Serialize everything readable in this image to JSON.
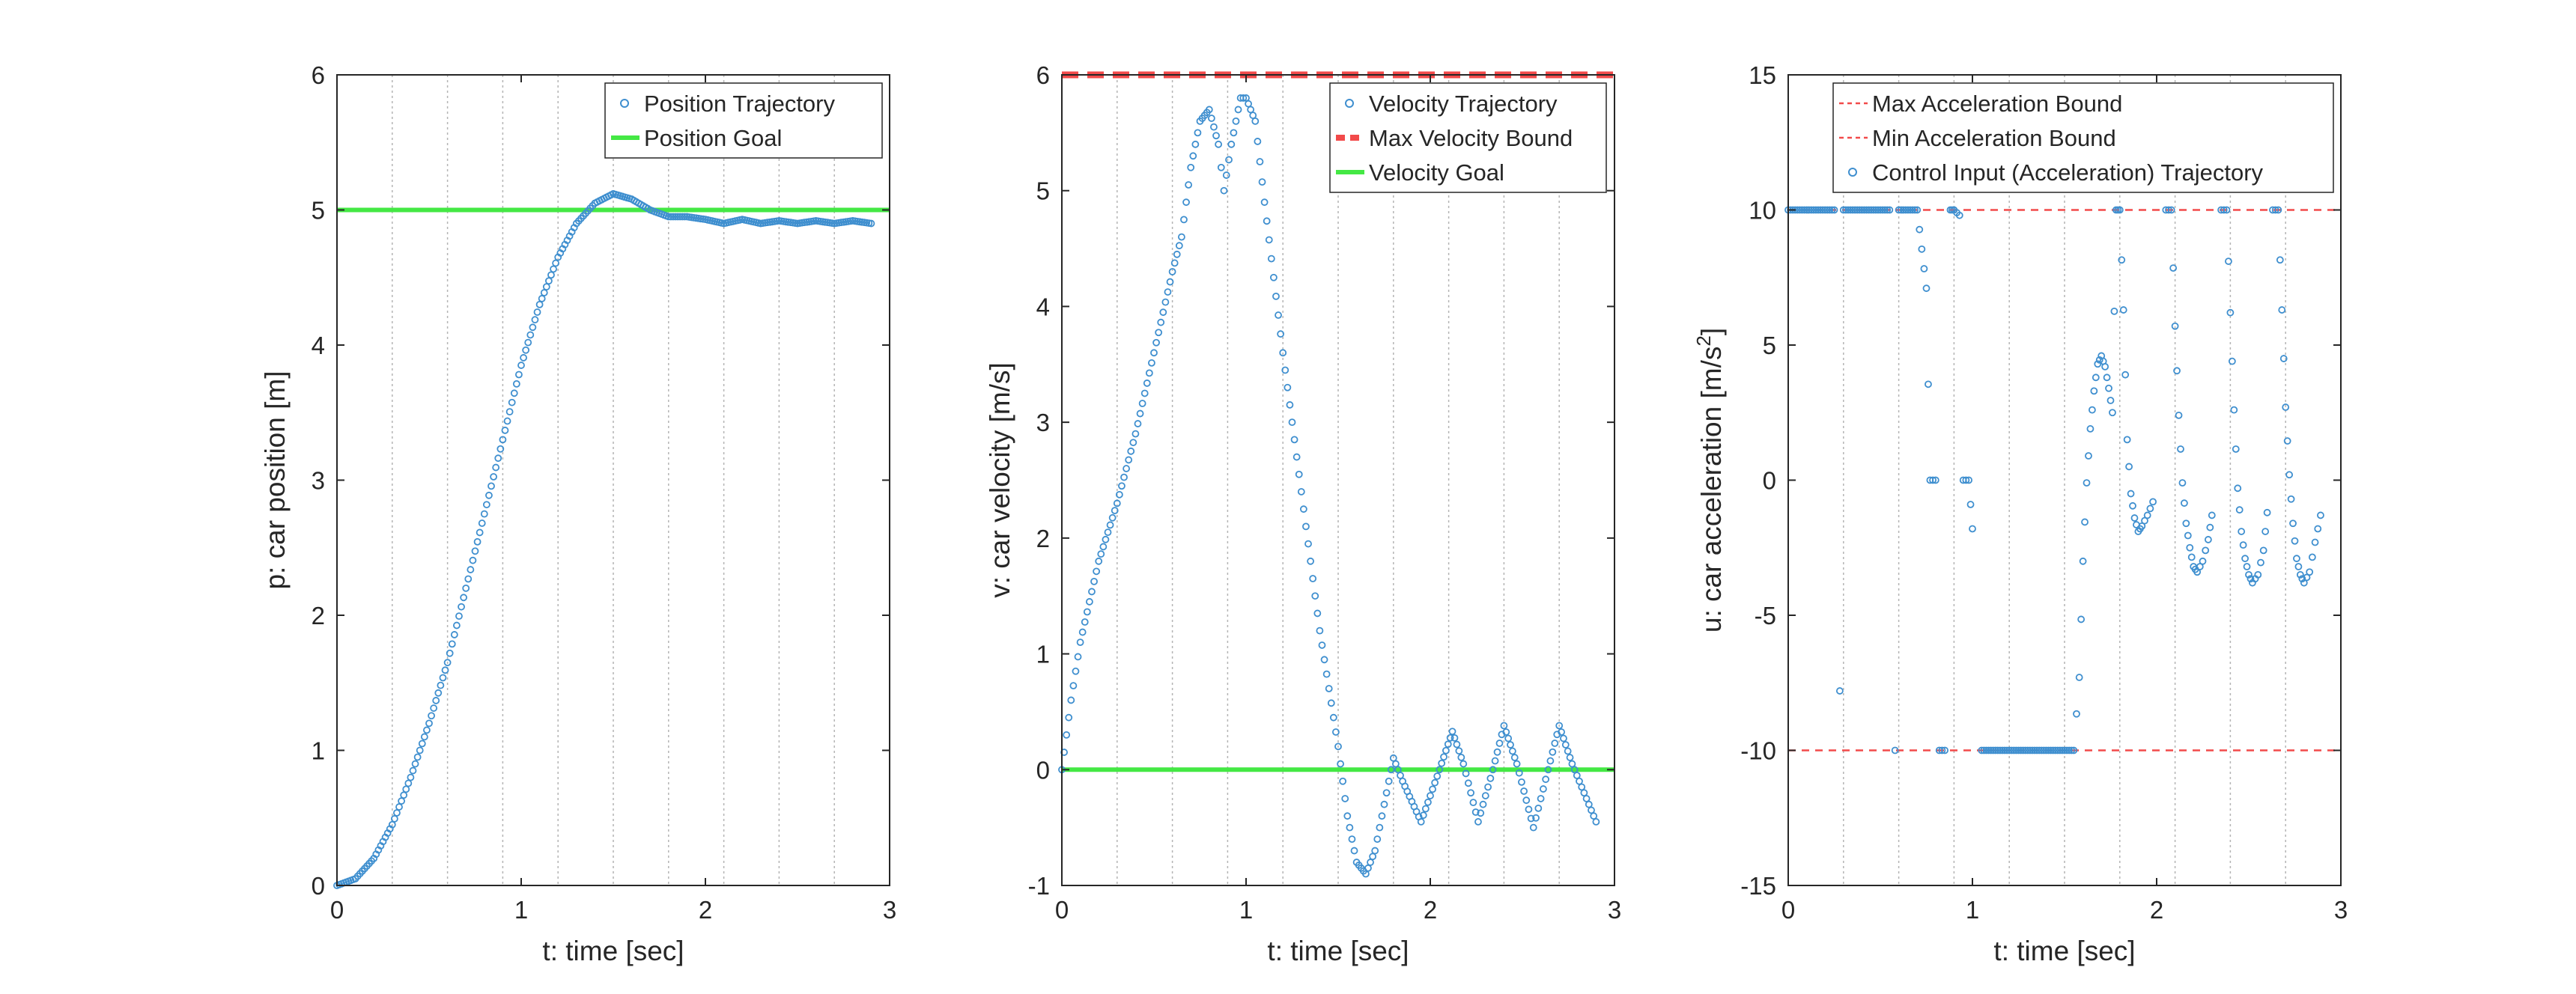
{
  "colors": {
    "trajectory": "#3F8FCF",
    "goal": "#44E844",
    "bound": "#F24A4A",
    "axis": "#262626",
    "vgrid": "#B4B4B4"
  },
  "chart_data": [
    {
      "type": "scatter",
      "xlabel": "t: time [sec]",
      "ylabel": "p: car position [m]",
      "xlim": [
        0,
        3
      ],
      "ylim": [
        0,
        6
      ],
      "xticks": [
        "0",
        "1",
        "2",
        "3"
      ],
      "yticks": [
        "0",
        "1",
        "2",
        "3",
        "4",
        "5",
        "6"
      ],
      "vertical_gridlines_x": [
        0.3,
        0.6,
        0.9,
        1.2,
        1.5,
        1.8,
        2.1,
        2.4,
        2.7
      ],
      "legend_position": "top-right",
      "legend": [
        "Position Trajectory",
        "Position Goal"
      ],
      "lines": [
        {
          "name": "Position Goal",
          "y": 5,
          "style": "solid",
          "color": "goal"
        }
      ],
      "series": [
        {
          "name": "Position Trajectory",
          "marker": "circle",
          "points": [
            [
              0,
              0
            ],
            [
              0.1,
              0.05
            ],
            [
              0.2,
              0.2
            ],
            [
              0.3,
              0.45
            ],
            [
              0.4,
              0.8
            ],
            [
              0.5,
              1.2
            ],
            [
              0.6,
              1.65
            ],
            [
              0.7,
              2.2
            ],
            [
              0.8,
              2.75
            ],
            [
              0.9,
              3.3
            ],
            [
              1.0,
              3.85
            ],
            [
              1.1,
              4.3
            ],
            [
              1.2,
              4.65
            ],
            [
              1.3,
              4.9
            ],
            [
              1.4,
              5.05
            ],
            [
              1.5,
              5.12
            ],
            [
              1.6,
              5.08
            ],
            [
              1.7,
              5.0
            ],
            [
              1.8,
              4.95
            ],
            [
              1.9,
              4.95
            ],
            [
              2.0,
              4.93
            ],
            [
              2.1,
              4.9
            ],
            [
              2.2,
              4.93
            ],
            [
              2.3,
              4.9
            ],
            [
              2.4,
              4.92
            ],
            [
              2.5,
              4.9
            ],
            [
              2.6,
              4.92
            ],
            [
              2.7,
              4.9
            ],
            [
              2.8,
              4.92
            ],
            [
              2.9,
              4.9
            ]
          ]
        }
      ]
    },
    {
      "type": "scatter",
      "xlabel": "t: time [sec]",
      "ylabel": "v: car velocity [m/s]",
      "xlim": [
        0,
        3
      ],
      "ylim": [
        -1,
        6
      ],
      "xticks": [
        "0",
        "1",
        "2",
        "3"
      ],
      "yticks": [
        "-1",
        "0",
        "1",
        "2",
        "3",
        "4",
        "5",
        "6"
      ],
      "vertical_gridlines_x": [
        0.3,
        0.6,
        0.9,
        1.2,
        1.5,
        1.8,
        2.1,
        2.4,
        2.7
      ],
      "legend_position": "top-right",
      "legend": [
        "Velocity Trajectory",
        "Max Velocity Bound",
        "Velocity Goal"
      ],
      "lines": [
        {
          "name": "Max Velocity Bound",
          "y": 6,
          "style": "dashed",
          "color": "bound"
        },
        {
          "name": "Velocity Goal",
          "y": 0,
          "style": "solid",
          "color": "goal"
        }
      ],
      "series": [
        {
          "name": "Velocity Trajectory",
          "marker": "circle",
          "points": [
            [
              0,
              0
            ],
            [
              0.05,
              0.6
            ],
            [
              0.1,
              1.1
            ],
            [
              0.2,
              1.8
            ],
            [
              0.3,
              2.3
            ],
            [
              0.4,
              2.9
            ],
            [
              0.5,
              3.6
            ],
            [
              0.6,
              4.3
            ],
            [
              0.65,
              4.6
            ],
            [
              0.7,
              5.2
            ],
            [
              0.75,
              5.6
            ],
            [
              0.8,
              5.7
            ],
            [
              0.85,
              5.4
            ],
            [
              0.88,
              5.0
            ],
            [
              0.92,
              5.4
            ],
            [
              0.97,
              5.8
            ],
            [
              1.0,
              5.8
            ],
            [
              1.05,
              5.6
            ],
            [
              1.1,
              4.9
            ],
            [
              1.2,
              3.6
            ],
            [
              1.3,
              2.4
            ],
            [
              1.4,
              1.2
            ],
            [
              1.5,
              0.2
            ],
            [
              1.55,
              -0.4
            ],
            [
              1.6,
              -0.8
            ],
            [
              1.65,
              -0.9
            ],
            [
              1.7,
              -0.7
            ],
            [
              1.75,
              -0.3
            ],
            [
              1.8,
              0.1
            ],
            [
              1.85,
              -0.1
            ],
            [
              1.95,
              -0.45
            ],
            [
              2.05,
              0.0
            ],
            [
              2.12,
              0.33
            ],
            [
              2.18,
              0.05
            ],
            [
              2.26,
              -0.45
            ],
            [
              2.34,
              0.0
            ],
            [
              2.4,
              0.38
            ],
            [
              2.47,
              0.05
            ],
            [
              2.56,
              -0.5
            ],
            [
              2.64,
              0.0
            ],
            [
              2.7,
              0.38
            ],
            [
              2.77,
              0.05
            ],
            [
              2.9,
              -0.45
            ]
          ]
        }
      ]
    },
    {
      "type": "scatter",
      "xlabel": "t: time [sec]",
      "ylabel": "u: car acceleration [m/s",
      "ylabel_superscript": "2",
      "ylabel_suffix": "]",
      "xlim": [
        0,
        3
      ],
      "ylim": [
        -15,
        15
      ],
      "xticks": [
        "0",
        "1",
        "2",
        "3"
      ],
      "yticks": [
        "-15",
        "-10",
        "-5",
        "0",
        "5",
        "10",
        "15"
      ],
      "vertical_gridlines_x": [
        0.3,
        0.6,
        0.9,
        1.2,
        1.5,
        1.8,
        2.1,
        2.4,
        2.7
      ],
      "legend_position": "top-left",
      "legend": [
        "Max Acceleration Bound",
        "Min Acceleration Bound",
        "Control Input (Acceleration) Trajectory"
      ],
      "lines": [
        {
          "name": "Max Acceleration Bound",
          "y": 10,
          "style": "dashed-thin",
          "color": "bound"
        },
        {
          "name": "Min Acceleration Bound",
          "y": -10,
          "style": "dashed-thin",
          "color": "bound"
        }
      ],
      "series": [
        {
          "name": "Control Input (Acceleration) Trajectory",
          "marker": "circle",
          "points": [
            [
              0,
              10
            ],
            [
              0.05,
              10
            ],
            [
              0.1,
              10
            ],
            [
              0.15,
              10
            ],
            [
              0.2,
              10
            ],
            [
              0.25,
              10
            ],
            [
              0.28,
              -7.8
            ],
            [
              0.3,
              10
            ],
            [
              0.35,
              10
            ],
            [
              0.4,
              10
            ],
            [
              0.45,
              10
            ],
            [
              0.5,
              10
            ],
            [
              0.55,
              10
            ],
            [
              0.58,
              -10
            ],
            [
              0.6,
              10
            ],
            [
              0.65,
              10
            ],
            [
              0.7,
              10
            ],
            [
              0.75,
              7.1
            ],
            [
              0.77,
              0
            ],
            [
              0.8,
              0
            ],
            [
              0.82,
              -10
            ],
            [
              0.85,
              -10
            ],
            [
              0.88,
              10
            ],
            [
              0.9,
              10
            ],
            [
              0.93,
              9.8
            ],
            [
              0.95,
              0
            ],
            [
              0.98,
              0
            ],
            [
              1.0,
              -1.8
            ],
            [
              1.05,
              -10
            ],
            [
              1.1,
              -10
            ],
            [
              1.2,
              -10
            ],
            [
              1.3,
              -10
            ],
            [
              1.4,
              -10
            ],
            [
              1.5,
              -10
            ],
            [
              1.55,
              -10
            ],
            [
              1.58,
              -7.3
            ],
            [
              1.6,
              -3.0
            ],
            [
              1.62,
              -0.1
            ],
            [
              1.64,
              1.9
            ],
            [
              1.66,
              3.3
            ],
            [
              1.68,
              4.3
            ],
            [
              1.7,
              4.6
            ],
            [
              1.72,
              4.2
            ],
            [
              1.74,
              3.4
            ],
            [
              1.76,
              2.5
            ],
            [
              1.78,
              10
            ],
            [
              1.8,
              10
            ],
            [
              1.82,
              6.3
            ],
            [
              1.84,
              1.5
            ],
            [
              1.86,
              -0.5
            ],
            [
              1.88,
              -1.4
            ],
            [
              1.9,
              -1.9
            ],
            [
              1.92,
              -1.7
            ],
            [
              1.95,
              -1.3
            ],
            [
              1.98,
              -0.8
            ],
            [
              2.05,
              10
            ],
            [
              2.08,
              10
            ],
            [
              2.1,
              5.7
            ],
            [
              2.12,
              2.4
            ],
            [
              2.14,
              -0.1
            ],
            [
              2.16,
              -1.6
            ],
            [
              2.18,
              -2.5
            ],
            [
              2.2,
              -3.2
            ],
            [
              2.22,
              -3.4
            ],
            [
              2.25,
              -3.0
            ],
            [
              2.28,
              -2.2
            ],
            [
              2.3,
              -1.3
            ],
            [
              2.35,
              10
            ],
            [
              2.38,
              10
            ],
            [
              2.4,
              6.2
            ],
            [
              2.42,
              2.6
            ],
            [
              2.44,
              -0.3
            ],
            [
              2.46,
              -1.9
            ],
            [
              2.48,
              -2.9
            ],
            [
              2.5,
              -3.5
            ],
            [
              2.52,
              -3.8
            ],
            [
              2.55,
              -3.5
            ],
            [
              2.58,
              -2.6
            ],
            [
              2.6,
              -1.2
            ],
            [
              2.63,
              10
            ],
            [
              2.66,
              10
            ],
            [
              2.68,
              6.3
            ],
            [
              2.7,
              2.7
            ],
            [
              2.72,
              0.2
            ],
            [
              2.74,
              -1.6
            ],
            [
              2.76,
              -2.9
            ],
            [
              2.78,
              -3.5
            ],
            [
              2.8,
              -3.8
            ],
            [
              2.83,
              -3.4
            ],
            [
              2.86,
              -2.3
            ],
            [
              2.89,
              -1.3
            ]
          ]
        }
      ]
    }
  ]
}
